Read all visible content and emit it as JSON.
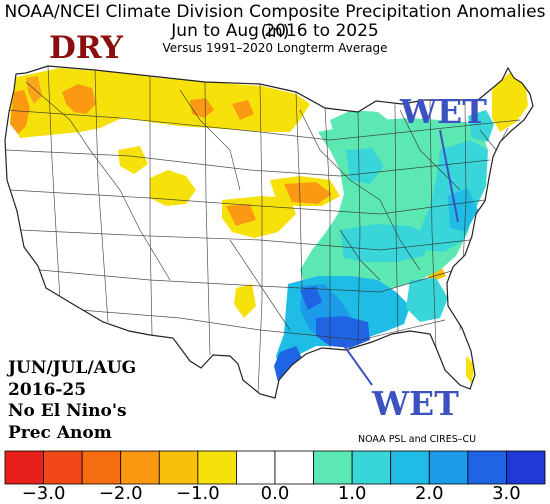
{
  "title": {
    "line1": "NOAA/NCEI Climate Division Composite Precipitation Anomalies (in)",
    "line2": "Jun to Aug 2016 to 2025",
    "line3": "Versus 1991–2020 Longterm Average"
  },
  "annotations": {
    "dry": "DRY",
    "wet_northeast": "WET",
    "wet_gulf": "WET"
  },
  "info_box": [
    "JUN/JUL/AUG",
    "2016-25",
    "No El Nino's",
    "Prec Anom"
  ],
  "credit": "NOAA PSL and CIRES–CU",
  "colorbar": {
    "colors": [
      "#e8201c",
      "#f24817",
      "#f76d12",
      "#fb9a12",
      "#f8c00a",
      "#f6e20a",
      "#ffffff",
      "#ffffff",
      "#5ce8b2",
      "#38d6d8",
      "#1fbde5",
      "#1b9be9",
      "#2064e6",
      "#203ad8"
    ],
    "tick_labels": [
      "−3.0",
      "−2.0",
      "−1.0",
      "0.0",
      "1.0",
      "2.0",
      "3.0"
    ]
  },
  "palette": {
    "dry_mild": "#f6e20a",
    "dry_moderate": "#fb9a12",
    "neutral": "#ffffff",
    "wet_mild": "#5ce8b2",
    "wet_moderate": "#38d6d8",
    "wet_strong": "#1fbde5",
    "wet_heavy": "#1b9be9",
    "wet_extreme": "#2064e6",
    "annotation_dry": "#8b0f0f",
    "annotation_wet": "#3c52c2"
  }
}
